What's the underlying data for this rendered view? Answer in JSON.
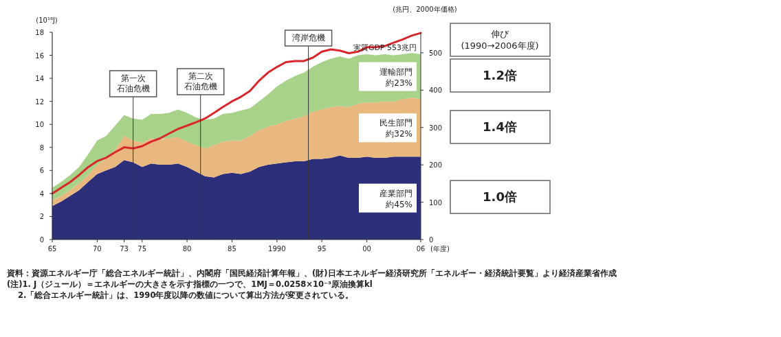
{
  "chart_data": {
    "type": "area",
    "stacked": true,
    "ylabel": "(10¹⁸J)",
    "y2label": "(兆円、2000年価格)",
    "xlabel": "(年度)",
    "x": [
      1965,
      1966,
      1967,
      1968,
      1969,
      1970,
      1971,
      1972,
      1973,
      1974,
      1975,
      1976,
      1977,
      1978,
      1979,
      1980,
      1981,
      1982,
      1983,
      1984,
      1985,
      1986,
      1987,
      1988,
      1989,
      1990,
      1991,
      1992,
      1993,
      1994,
      1995,
      1996,
      1997,
      1998,
      1999,
      2000,
      2001,
      2002,
      2003,
      2004,
      2005,
      2006
    ],
    "xlim": [
      1965,
      2006
    ],
    "xticks": [
      {
        "value": 1965,
        "label": "65"
      },
      {
        "value": 1970,
        "label": "70"
      },
      {
        "value": 1973,
        "label": "73"
      },
      {
        "value": 1975,
        "label": "75"
      },
      {
        "value": 1980,
        "label": "80"
      },
      {
        "value": 1985,
        "label": "85"
      },
      {
        "value": 1990,
        "label": "1990"
      },
      {
        "value": 1995,
        "label": "95"
      },
      {
        "value": 2000,
        "label": "00"
      },
      {
        "value": 2006,
        "label": "06"
      }
    ],
    "ylim": [
      0,
      18
    ],
    "yticks": [
      0,
      2,
      4,
      6,
      8,
      10,
      12,
      14,
      16,
      18
    ],
    "y2lim": [
      0,
      555
    ],
    "y2ticks": [
      0,
      100,
      200,
      300,
      400,
      500
    ],
    "series": [
      {
        "name": "産業部門約45%",
        "color": "#2e2f7a",
        "values": [
          2.9,
          3.3,
          3.8,
          4.3,
          5.0,
          5.7,
          6.0,
          6.3,
          6.9,
          6.7,
          6.3,
          6.6,
          6.5,
          6.5,
          6.6,
          6.3,
          5.9,
          5.5,
          5.4,
          5.7,
          5.8,
          5.7,
          5.9,
          6.3,
          6.5,
          6.6,
          6.7,
          6.8,
          6.8,
          7.0,
          7.0,
          7.1,
          7.3,
          7.1,
          7.1,
          7.2,
          7.1,
          7.1,
          7.2,
          7.2,
          7.2,
          7.2
        ]
      },
      {
        "name": "民生部門約32%",
        "color": "#e9b87f",
        "values": [
          0.5,
          0.5,
          0.5,
          0.6,
          0.6,
          0.8,
          1.0,
          1.5,
          2.1,
          1.9,
          2.1,
          2.2,
          2.2,
          2.3,
          2.3,
          2.2,
          2.3,
          2.4,
          2.8,
          2.8,
          2.8,
          2.9,
          3.1,
          3.2,
          3.3,
          3.4,
          3.6,
          3.7,
          3.9,
          4.1,
          4.3,
          4.4,
          4.3,
          4.4,
          4.7,
          4.7,
          4.8,
          4.9,
          4.8,
          5.0,
          5.1,
          5.0
        ]
      },
      {
        "name": "運輸部門約23%",
        "color": "#a8d18a",
        "values": [
          1.1,
          1.2,
          1.3,
          1.4,
          1.8,
          2.1,
          2.0,
          2.1,
          1.8,
          1.9,
          2.0,
          2.1,
          2.2,
          2.2,
          2.4,
          2.5,
          2.4,
          2.5,
          2.3,
          2.4,
          2.4,
          2.6,
          2.4,
          2.5,
          2.8,
          3.3,
          3.5,
          3.7,
          3.8,
          3.9,
          4.1,
          4.2,
          4.3,
          4.2,
          4.2,
          4.2,
          4.1,
          4.1,
          4.0,
          3.9,
          3.9,
          3.9
        ]
      },
      {
        "name": "実質GDP 553兆円",
        "type": "line",
        "axis": "y2",
        "color": "#d9262b",
        "values": [
          123,
          139,
          154,
          173,
          194,
          210,
          219,
          234,
          247,
          244,
          250,
          262,
          271,
          284,
          296,
          305,
          314,
          324,
          339,
          355,
          370,
          382,
          398,
          425,
          447,
          462,
          475,
          478,
          478,
          487,
          503,
          509,
          506,
          499,
          503,
          515,
          515,
          518,
          527,
          536,
          546,
          553
        ]
      }
    ],
    "ref_lines": [
      {
        "axis": "x",
        "value": 1974,
        "label": "第一次石油危機",
        "color": "#333333"
      },
      {
        "axis": "x",
        "value": 1981.5,
        "label": "第二次石油危機",
        "color": "#333333"
      },
      {
        "axis": "x",
        "value": 1993.5,
        "label": "湾岸危機",
        "color": "#333333"
      }
    ],
    "annotations": [
      "伸び(1990→2006年度)",
      "1.2倍",
      "1.4倍",
      "1.0倍",
      "資料：資源エネルギー庁「総合エネルギー統計」、内閣府「国民経済計算年報」、(財)日本エネルギー経済研究所「エネルギー・経済統計要覧」より経済産業省作成",
      "(注)1. J（ジュール）＝エネルギーの大きさを示す指標の一つで、1MJ＝0.0258×10⁻³原油換算kl",
      "2.「総合エネルギー統計」は、1990年度以降の数値について算出方法が変更されている。"
    ]
  }
}
